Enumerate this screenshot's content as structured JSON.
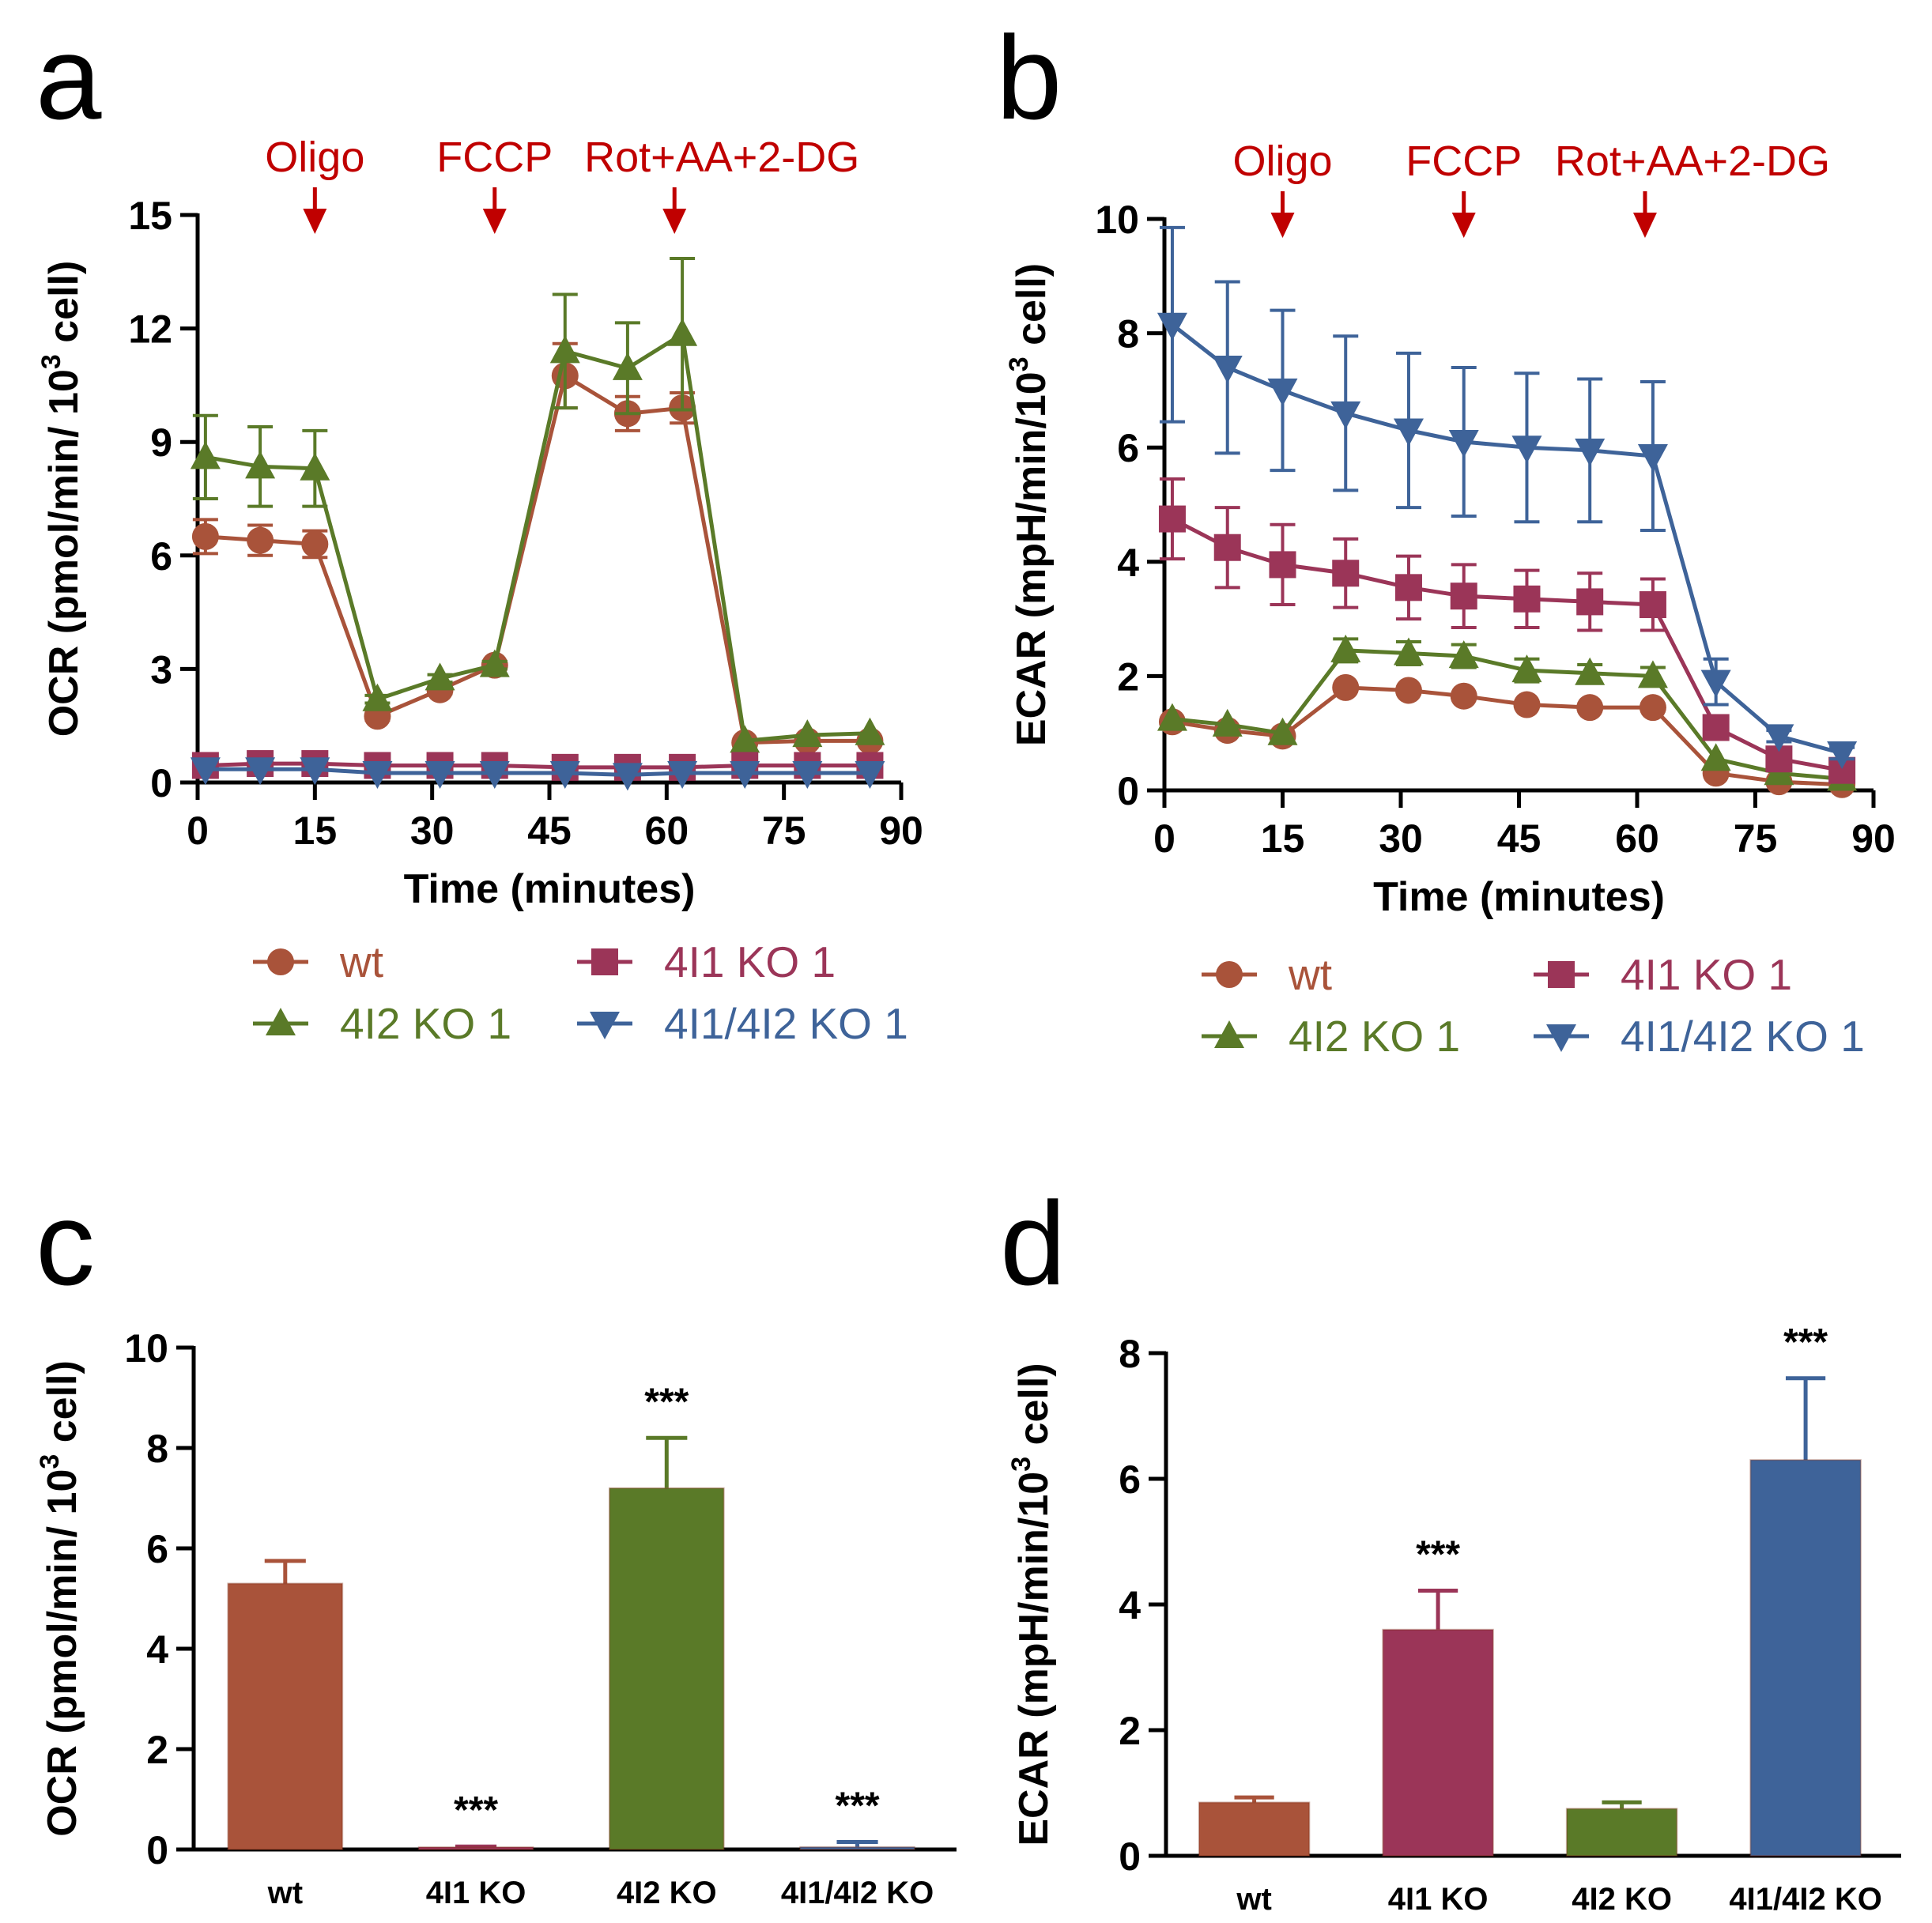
{
  "colors": {
    "wt": "#a9533a",
    "ko41": "#9b3558",
    "ko42": "#5a7a28",
    "dko": "#3e6399",
    "treatment": "#c00000",
    "axis": "#000000"
  },
  "chart_data": [
    {
      "id": "a",
      "type": "line",
      "panel_label": "a",
      "xlabel": "Time (minutes)",
      "ylabel": "OCR (pmol/min/ 10³ cell)",
      "ylabel_main": "OCR (pmol/min/ 10",
      "ylabel_sup": "3",
      "ylabel_end": " cell)",
      "xlim": [
        0,
        90
      ],
      "ylim": [
        0,
        15
      ],
      "xticks": [
        0,
        15,
        30,
        45,
        60,
        75,
        90
      ],
      "yticks": [
        0,
        3,
        6,
        9,
        12,
        15
      ],
      "treatments": [
        {
          "label": "Oligo",
          "x": 15
        },
        {
          "label": "FCCP",
          "x": 38
        },
        {
          "label": "Rot+AA+2-DG",
          "x": 61
        }
      ],
      "x": [
        1,
        8,
        15,
        23,
        31,
        38,
        47,
        55,
        62,
        70,
        78,
        86
      ],
      "series": [
        {
          "name": "wt",
          "marker": "circle",
          "color_key": "wt",
          "values": [
            6.5,
            6.4,
            6.3,
            1.75,
            2.45,
            3.1,
            10.75,
            9.75,
            9.9,
            1.05,
            1.1,
            1.1
          ],
          "errors": [
            0.45,
            0.4,
            0.35,
            0.1,
            0.1,
            0.1,
            0.85,
            0.45,
            0.4,
            0.05,
            0.05,
            0.05
          ]
        },
        {
          "name": "4I2 KO 1",
          "marker": "triangle-up",
          "color_key": "ko42",
          "values": [
            8.6,
            8.35,
            8.3,
            2.2,
            2.75,
            3.1,
            11.4,
            10.95,
            11.85,
            1.1,
            1.25,
            1.3
          ],
          "errors": [
            1.1,
            1.05,
            1.0,
            0.1,
            0.1,
            0.1,
            1.5,
            1.2,
            2.0,
            0.05,
            0.05,
            0.05
          ]
        },
        {
          "name": "4I1 KO 1",
          "marker": "square",
          "color_key": "ko41",
          "values": [
            0.45,
            0.5,
            0.5,
            0.45,
            0.45,
            0.45,
            0.4,
            0.4,
            0.4,
            0.45,
            0.45,
            0.45
          ],
          "errors": [
            0.03,
            0.03,
            0.03,
            0.03,
            0.03,
            0.03,
            0.03,
            0.03,
            0.03,
            0.03,
            0.03,
            0.03
          ]
        },
        {
          "name": "4I1/4I2 KO 1",
          "marker": "triangle-down",
          "color_key": "dko",
          "values": [
            0.35,
            0.35,
            0.35,
            0.25,
            0.25,
            0.25,
            0.25,
            0.2,
            0.25,
            0.25,
            0.25,
            0.25
          ],
          "errors": [
            0.02,
            0.02,
            0.02,
            0.02,
            0.02,
            0.02,
            0.02,
            0.02,
            0.02,
            0.02,
            0.02,
            0.02
          ]
        }
      ],
      "legend_order": [
        "wt",
        "4I1 KO 1",
        "4I2 KO 1",
        "4I1/4I2 KO 1"
      ]
    },
    {
      "id": "b",
      "type": "line",
      "panel_label": "b",
      "xlabel": "Time (minutes)",
      "ylabel": "ECAR (mpH/min/10³ cell)",
      "ylabel_main": "ECAR (mpH/min/10",
      "ylabel_sup": "3",
      "ylabel_end": " cell)",
      "xlim": [
        0,
        90
      ],
      "ylim": [
        0,
        10
      ],
      "xticks": [
        0,
        15,
        30,
        45,
        60,
        75,
        90
      ],
      "yticks": [
        0,
        2,
        4,
        6,
        8,
        10
      ],
      "treatments": [
        {
          "label": "Oligo",
          "x": 15
        },
        {
          "label": "FCCP",
          "x": 38
        },
        {
          "label": "Rot+AA+2-DG",
          "x": 61
        }
      ],
      "x": [
        1,
        8,
        15,
        23,
        31,
        38,
        46,
        54,
        62,
        70,
        78,
        86
      ],
      "series": [
        {
          "name": "wt",
          "marker": "circle",
          "color_key": "wt",
          "values": [
            1.2,
            1.05,
            0.95,
            1.8,
            1.75,
            1.65,
            1.5,
            1.45,
            1.45,
            0.3,
            0.15,
            0.1
          ],
          "errors": [
            0.05,
            0.05,
            0.05,
            0.05,
            0.05,
            0.05,
            0.05,
            0.05,
            0.05,
            0.03,
            0.03,
            0.03
          ]
        },
        {
          "name": "4I2 KO 1",
          "marker": "triangle-up",
          "color_key": "ko42",
          "values": [
            1.25,
            1.15,
            1.0,
            2.45,
            2.4,
            2.35,
            2.1,
            2.05,
            2.0,
            0.55,
            0.3,
            0.2
          ],
          "errors": [
            0.05,
            0.05,
            0.05,
            0.2,
            0.2,
            0.2,
            0.2,
            0.15,
            0.15,
            0.05,
            0.05,
            0.05
          ]
        },
        {
          "name": "4I1 KO 1",
          "marker": "square",
          "color_key": "ko41",
          "values": [
            4.75,
            4.25,
            3.95,
            3.8,
            3.55,
            3.4,
            3.35,
            3.3,
            3.25,
            1.1,
            0.55,
            0.35
          ],
          "errors": [
            0.7,
            0.7,
            0.7,
            0.6,
            0.55,
            0.55,
            0.5,
            0.5,
            0.45,
            0.1,
            0.08,
            0.05
          ]
        },
        {
          "name": "4I1/4I2 KO 1",
          "marker": "triangle-down",
          "color_key": "dko",
          "values": [
            8.15,
            7.4,
            7.0,
            6.6,
            6.3,
            6.1,
            6.0,
            5.95,
            5.85,
            1.9,
            0.95,
            0.65
          ],
          "errors": [
            1.7,
            1.5,
            1.4,
            1.35,
            1.35,
            1.3,
            1.3,
            1.25,
            1.3,
            0.4,
            0.1,
            0.1
          ]
        }
      ],
      "legend_order": [
        "wt",
        "4I1 KO 1",
        "4I2 KO 1",
        "4I1/4I2 KO 1"
      ]
    },
    {
      "id": "c",
      "type": "bar",
      "panel_label": "c",
      "ylabel": "OCR (pmol/min/ 10³ cell)",
      "ylabel_main": "OCR (pmol/min/ 10",
      "ylabel_sup": "3",
      "ylabel_end": " cell)",
      "ylim": [
        0,
        10
      ],
      "yticks": [
        0,
        2,
        4,
        6,
        8,
        10
      ],
      "categories": [
        "wt",
        "4I1 KO",
        "4I2 KO",
        "4I1/4I2 KO"
      ],
      "color_keys": [
        "wt",
        "ko41",
        "ko42",
        "dko"
      ],
      "values": [
        5.3,
        0.03,
        7.2,
        0.05
      ],
      "errors": [
        0.45,
        0.03,
        1.0,
        0.1
      ],
      "annotations": [
        "",
        "***",
        "***",
        "***"
      ]
    },
    {
      "id": "d",
      "type": "bar",
      "panel_label": "d",
      "ylabel": "ECAR (mpH/min/10³ cell)",
      "ylabel_main": "ECAR (mpH/min/10",
      "ylabel_sup": "3",
      "ylabel_end": " cell)",
      "ylim": [
        0,
        8
      ],
      "yticks": [
        0,
        2,
        4,
        6,
        8
      ],
      "categories": [
        "wt",
        "4I1 KO",
        "4I2 KO",
        "4I1/4I2 KO"
      ],
      "color_keys": [
        "wt",
        "ko41",
        "ko42",
        "dko"
      ],
      "values": [
        0.85,
        3.6,
        0.75,
        6.3
      ],
      "errors": [
        0.08,
        0.62,
        0.1,
        1.3
      ],
      "annotations": [
        "",
        "***",
        "",
        "***"
      ]
    }
  ]
}
